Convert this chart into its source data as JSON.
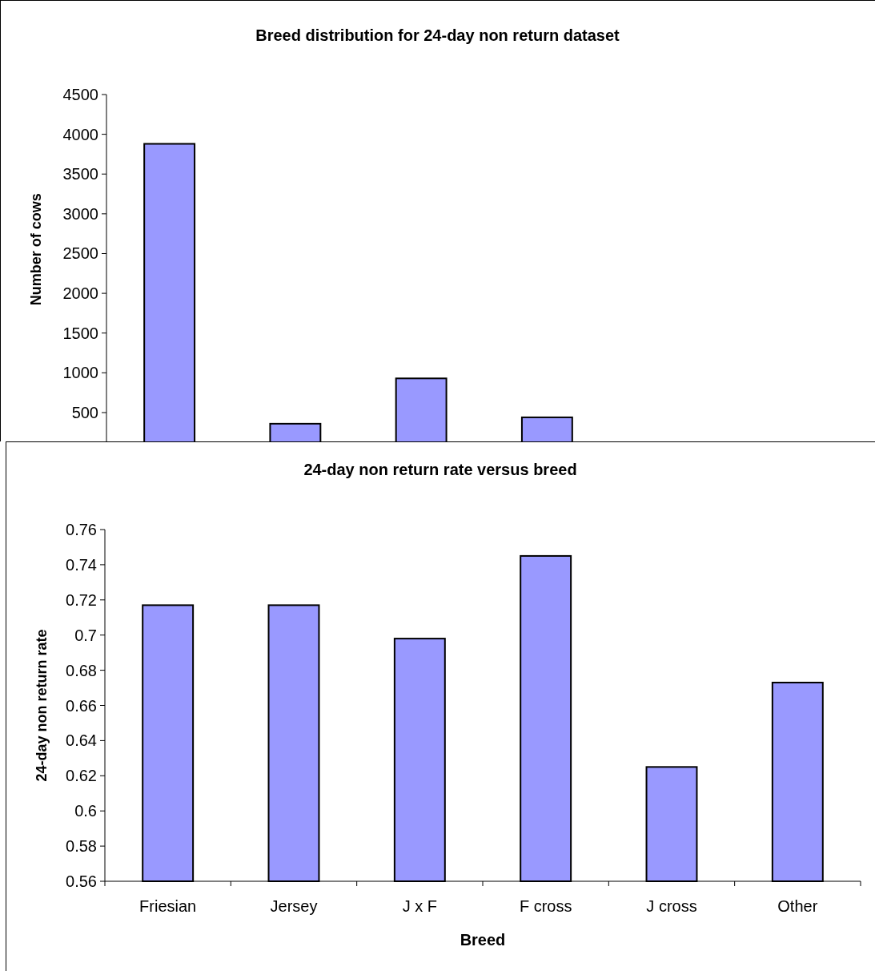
{
  "chart_data": [
    {
      "type": "bar",
      "title": "Breed distribution for 24-day non return dataset",
      "ylabel": "Number of cows",
      "categories": [
        null,
        null,
        null,
        null
      ],
      "values": [
        3880,
        360,
        930,
        440
      ],
      "color": "#9999ff",
      "ylim": [
        0,
        4500
      ],
      "yticks": [
        500,
        1000,
        1500,
        2000,
        2500,
        3000,
        3500,
        4000,
        4500
      ],
      "grid": false
    },
    {
      "type": "bar",
      "title": "24-day non return rate versus breed",
      "xlabel": "Breed",
      "ylabel": "24-day non return rate",
      "categories": [
        "Friesian",
        "Jersey",
        "J x F",
        "F cross",
        "J cross",
        "Other"
      ],
      "values": [
        0.717,
        0.717,
        0.698,
        0.745,
        0.625,
        0.673
      ],
      "color": "#9999ff",
      "ylim": [
        0.56,
        0.76
      ],
      "yticks": [
        0.56,
        0.58,
        0.6,
        0.62,
        0.64,
        0.66,
        0.68,
        0.7,
        0.72,
        0.74,
        0.76
      ],
      "grid": false
    }
  ]
}
